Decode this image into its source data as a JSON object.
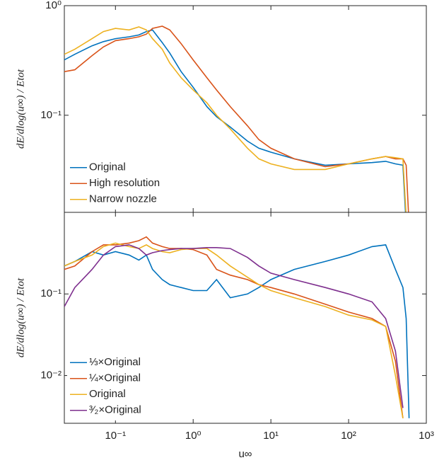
{
  "chart_data": [
    {
      "type": "line",
      "ylabel": "dE/dlog(u∞) / Etot",
      "log_x": true,
      "log_y": true,
      "legend": "lower left",
      "xlim": [
        0.022,
        1000
      ],
      "ylim": [
        0.013,
        1
      ],
      "yticks": [
        {
          "value": 1,
          "label": "10⁰"
        },
        {
          "value": 0.1,
          "label": "10⁻¹"
        }
      ],
      "x": [
        0.022,
        0.03,
        0.05,
        0.07,
        0.1,
        0.15,
        0.2,
        0.25,
        0.3,
        0.4,
        0.5,
        0.7,
        1,
        1.5,
        2,
        3,
        5,
        7,
        10,
        20,
        50,
        100,
        200,
        300,
        400,
        500,
        550,
        600
      ],
      "series": [
        {
          "name": "Original",
          "color": "#0072BD",
          "values": [
            0.32,
            0.36,
            0.43,
            0.47,
            0.5,
            0.52,
            0.54,
            0.58,
            0.6,
            0.46,
            0.37,
            0.25,
            0.18,
            0.12,
            0.097,
            0.078,
            0.058,
            0.05,
            0.046,
            0.04,
            0.035,
            0.036,
            0.037,
            0.038,
            0.036,
            0.035,
            0.01,
            null
          ]
        },
        {
          "name": "High resolution",
          "color": "#D95319",
          "values": [
            0.25,
            0.26,
            0.35,
            0.42,
            0.48,
            0.5,
            0.52,
            0.55,
            0.62,
            0.65,
            0.6,
            0.45,
            0.32,
            0.22,
            0.17,
            0.12,
            0.08,
            0.06,
            0.05,
            0.04,
            0.034,
            0.036,
            0.04,
            0.042,
            0.04,
            0.04,
            0.035,
            0.01
          ]
        },
        {
          "name": "Narrow nozzle",
          "color": "#EDB120",
          "values": [
            0.36,
            0.4,
            0.5,
            0.58,
            0.62,
            0.6,
            0.64,
            0.6,
            0.5,
            0.4,
            0.3,
            0.22,
            0.17,
            0.13,
            0.1,
            0.075,
            0.05,
            0.04,
            0.036,
            0.032,
            0.032,
            0.036,
            0.04,
            0.042,
            0.041,
            0.04,
            0.012,
            null
          ]
        }
      ]
    },
    {
      "type": "line",
      "ylabel": "dE/dlog(u∞) / Etot",
      "xlabel": "u∞",
      "log_x": true,
      "log_y": true,
      "legend": "lower left",
      "xlim": [
        0.022,
        1000
      ],
      "ylim": [
        0.0026,
        1
      ],
      "xticks": [
        {
          "value": 0.1,
          "label": "10⁻¹"
        },
        {
          "value": 1,
          "label": "10⁰"
        },
        {
          "value": 10,
          "label": "10¹"
        },
        {
          "value": 100,
          "label": "10²"
        },
        {
          "value": 1000,
          "label": "10³"
        }
      ],
      "yticks": [
        {
          "value": 0.1,
          "label": "10⁻¹"
        },
        {
          "value": 0.01,
          "label": "10⁻²"
        }
      ],
      "x": [
        0.022,
        0.03,
        0.05,
        0.07,
        0.1,
        0.15,
        0.2,
        0.25,
        0.3,
        0.4,
        0.5,
        0.7,
        1,
        1.5,
        2,
        3,
        5,
        7,
        10,
        20,
        50,
        100,
        200,
        300,
        400,
        500,
        550,
        600
      ],
      "series": [
        {
          "name": "⅓×Original",
          "color": "#0072BD",
          "values": [
            0.22,
            0.25,
            0.33,
            0.3,
            0.33,
            0.3,
            0.26,
            0.3,
            0.2,
            0.15,
            0.13,
            0.12,
            0.11,
            0.11,
            0.15,
            0.09,
            0.1,
            0.12,
            0.15,
            0.2,
            0.25,
            0.3,
            0.38,
            0.4,
            0.2,
            0.12,
            0.05,
            0.003
          ]
        },
        {
          "name": "¼×Original",
          "color": "#D95319",
          "values": [
            0.2,
            0.22,
            0.33,
            0.4,
            0.4,
            0.42,
            0.45,
            0.5,
            0.42,
            0.38,
            0.36,
            0.36,
            0.35,
            0.3,
            0.2,
            0.17,
            0.15,
            0.13,
            0.12,
            0.1,
            0.075,
            0.06,
            0.05,
            0.04,
            0.015,
            0.003,
            null,
            null
          ]
        },
        {
          "name": "Original",
          "color": "#EDB120",
          "values": [
            0.22,
            0.25,
            0.3,
            0.38,
            0.42,
            0.38,
            0.36,
            0.4,
            0.36,
            0.33,
            0.32,
            0.35,
            0.36,
            0.36,
            0.3,
            0.22,
            0.16,
            0.13,
            0.11,
            0.09,
            0.07,
            0.055,
            0.048,
            0.04,
            0.01,
            0.003,
            null,
            null
          ]
        },
        {
          "name": "³⁄₂×Original",
          "color": "#7E2F8E",
          "values": [
            0.07,
            0.12,
            0.2,
            0.3,
            0.38,
            0.4,
            0.36,
            0.3,
            0.32,
            0.34,
            0.35,
            0.36,
            0.36,
            0.37,
            0.37,
            0.36,
            0.28,
            0.22,
            0.18,
            0.15,
            0.12,
            0.1,
            0.08,
            0.05,
            0.02,
            0.004,
            null,
            null
          ]
        }
      ]
    }
  ]
}
